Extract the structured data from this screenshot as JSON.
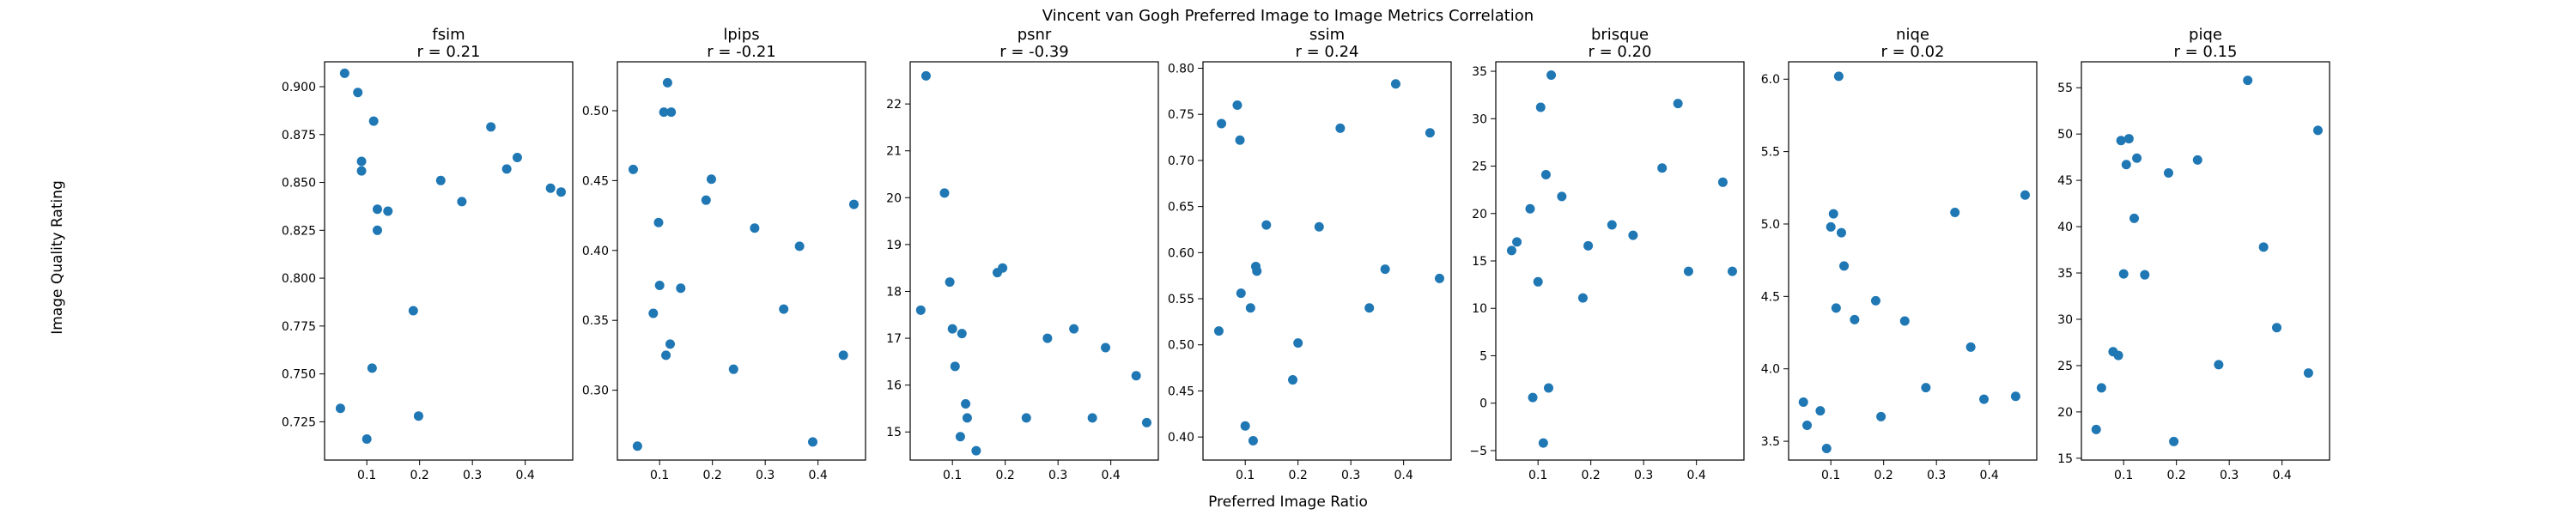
{
  "figure": {
    "suptitle": "Vincent van Gogh Preferred Image to Image Metrics Correlation",
    "xlabel": "Preferred Image Ratio",
    "ylabel": "Image Quality Rating"
  },
  "colors": {
    "point": "#1f77b4",
    "axis": "#000000"
  },
  "chart_data": [
    {
      "type": "scatter",
      "name": "fsim",
      "title": "fsim",
      "subtitle": "r = 0.21",
      "xlim": [
        0.02,
        0.49
      ],
      "ylim": [
        0.705,
        0.913
      ],
      "xticks": [
        0.1,
        0.2,
        0.3,
        0.4
      ],
      "xtick_labels": [
        "0.1",
        "0.2",
        "0.3",
        "0.4"
      ],
      "yticks": [
        0.725,
        0.75,
        0.775,
        0.8,
        0.825,
        0.85,
        0.875,
        0.9
      ],
      "ytick_labels": [
        "0.725",
        "0.750",
        "0.775",
        "0.800",
        "0.825",
        "0.850",
        "0.875",
        "0.900"
      ],
      "x": [
        0.05,
        0.058,
        0.083,
        0.09,
        0.09,
        0.1,
        0.11,
        0.113,
        0.12,
        0.12,
        0.14,
        0.188,
        0.198,
        0.24,
        0.28,
        0.335,
        0.365,
        0.385,
        0.448,
        0.468
      ],
      "y": [
        0.732,
        0.907,
        0.897,
        0.861,
        0.856,
        0.716,
        0.753,
        0.882,
        0.836,
        0.825,
        0.835,
        0.783,
        0.728,
        0.851,
        0.84,
        0.879,
        0.857,
        0.863,
        0.847,
        0.845
      ]
    },
    {
      "type": "scatter",
      "name": "lpips",
      "title": "lpips",
      "subtitle": "r = -0.21",
      "xlim": [
        0.02,
        0.49
      ],
      "ylim": [
        0.25,
        0.535
      ],
      "xticks": [
        0.1,
        0.2,
        0.3,
        0.4
      ],
      "xtick_labels": [
        "0.1",
        "0.2",
        "0.3",
        "0.4"
      ],
      "yticks": [
        0.3,
        0.35,
        0.4,
        0.45,
        0.5
      ],
      "ytick_labels": [
        "0.30",
        "0.35",
        "0.40",
        "0.45",
        "0.50"
      ],
      "x": [
        0.05,
        0.058,
        0.088,
        0.098,
        0.1,
        0.108,
        0.112,
        0.115,
        0.12,
        0.122,
        0.14,
        0.188,
        0.198,
        0.24,
        0.28,
        0.335,
        0.365,
        0.39,
        0.448,
        0.468
      ],
      "y": [
        0.458,
        0.26,
        0.355,
        0.42,
        0.375,
        0.499,
        0.325,
        0.52,
        0.333,
        0.499,
        0.373,
        0.436,
        0.451,
        0.315,
        0.416,
        0.358,
        0.403,
        0.263,
        0.325,
        0.433
      ]
    },
    {
      "type": "scatter",
      "name": "psnr",
      "title": "psnr",
      "subtitle": "r = -0.39",
      "xlim": [
        0.02,
        0.49
      ],
      "ylim": [
        14.4,
        22.9
      ],
      "xticks": [
        0.1,
        0.2,
        0.3,
        0.4
      ],
      "xtick_labels": [
        "0.1",
        "0.2",
        "0.3",
        "0.4"
      ],
      "yticks": [
        15,
        16,
        17,
        18,
        19,
        20,
        21,
        22
      ],
      "ytick_labels": [
        "15",
        "16",
        "17",
        "18",
        "19",
        "20",
        "21",
        "22"
      ],
      "x": [
        0.04,
        0.05,
        0.085,
        0.095,
        0.1,
        0.105,
        0.115,
        0.118,
        0.125,
        0.128,
        0.145,
        0.185,
        0.195,
        0.24,
        0.28,
        0.33,
        0.365,
        0.39,
        0.448,
        0.468
      ],
      "y": [
        17.6,
        22.6,
        20.1,
        18.2,
        17.2,
        16.4,
        14.9,
        17.1,
        15.6,
        15.3,
        14.6,
        18.4,
        18.5,
        15.3,
        17.0,
        17.2,
        15.3,
        16.8,
        16.2,
        15.2
      ]
    },
    {
      "type": "scatter",
      "name": "ssim",
      "title": "ssim",
      "subtitle": "r = 0.24",
      "xlim": [
        0.02,
        0.49
      ],
      "ylim": [
        0.375,
        0.807
      ],
      "xticks": [
        0.1,
        0.2,
        0.3,
        0.4
      ],
      "xtick_labels": [
        "0.1",
        "0.2",
        "0.3",
        "0.4"
      ],
      "yticks": [
        0.4,
        0.45,
        0.5,
        0.55,
        0.6,
        0.65,
        0.7,
        0.75,
        0.8
      ],
      "ytick_labels": [
        "0.40",
        "0.45",
        "0.50",
        "0.55",
        "0.60",
        "0.65",
        "0.70",
        "0.75",
        "0.80"
      ],
      "x": [
        0.05,
        0.055,
        0.085,
        0.09,
        0.092,
        0.1,
        0.11,
        0.115,
        0.12,
        0.122,
        0.14,
        0.19,
        0.2,
        0.24,
        0.28,
        0.335,
        0.365,
        0.385,
        0.45,
        0.468
      ],
      "y": [
        0.515,
        0.74,
        0.76,
        0.722,
        0.556,
        0.412,
        0.54,
        0.396,
        0.585,
        0.58,
        0.63,
        0.462,
        0.502,
        0.628,
        0.735,
        0.54,
        0.582,
        0.783,
        0.73,
        0.572
      ]
    },
    {
      "type": "scatter",
      "name": "brisque",
      "title": "brisque",
      "subtitle": "r = 0.20",
      "xlim": [
        0.02,
        0.49
      ],
      "ylim": [
        -6.0,
        36.0
      ],
      "xticks": [
        0.1,
        0.2,
        0.3,
        0.4
      ],
      "xtick_labels": [
        "0.1",
        "0.2",
        "0.3",
        "0.4"
      ],
      "yticks": [
        -5,
        0,
        5,
        10,
        15,
        20,
        25,
        30,
        35
      ],
      "ytick_labels": [
        "−5",
        "0",
        "5",
        "10",
        "15",
        "20",
        "25",
        "30",
        "35"
      ],
      "x": [
        0.05,
        0.06,
        0.085,
        0.09,
        0.1,
        0.105,
        0.11,
        0.115,
        0.12,
        0.125,
        0.145,
        0.185,
        0.195,
        0.24,
        0.28,
        0.335,
        0.365,
        0.385,
        0.45,
        0.468
      ],
      "y": [
        16.1,
        17.0,
        20.5,
        0.6,
        12.8,
        31.2,
        -4.2,
        24.1,
        1.6,
        34.6,
        21.8,
        11.1,
        16.6,
        18.8,
        17.7,
        24.8,
        31.6,
        13.9,
        23.3,
        13.9
      ]
    },
    {
      "type": "scatter",
      "name": "niqe",
      "title": "niqe",
      "subtitle": "r = 0.02",
      "xlim": [
        0.02,
        0.49
      ],
      "ylim": [
        3.37,
        6.12
      ],
      "xticks": [
        0.1,
        0.2,
        0.3,
        0.4
      ],
      "xtick_labels": [
        "0.1",
        "0.2",
        "0.3",
        "0.4"
      ],
      "yticks": [
        3.5,
        4.0,
        4.5,
        5.0,
        5.5,
        6.0
      ],
      "ytick_labels": [
        "3.5",
        "4.0",
        "4.5",
        "5.0",
        "5.5",
        "6.0"
      ],
      "x": [
        0.048,
        0.055,
        0.08,
        0.092,
        0.1,
        0.105,
        0.11,
        0.115,
        0.12,
        0.125,
        0.145,
        0.185,
        0.195,
        0.24,
        0.28,
        0.335,
        0.365,
        0.39,
        0.45,
        0.468
      ],
      "y": [
        3.77,
        3.61,
        3.71,
        3.45,
        4.98,
        5.07,
        4.42,
        6.02,
        4.94,
        4.71,
        4.34,
        4.47,
        3.67,
        4.33,
        3.87,
        5.08,
        4.15,
        3.79,
        3.81,
        5.2
      ]
    },
    {
      "type": "scatter",
      "name": "piqe",
      "title": "piqe",
      "subtitle": "r = 0.15",
      "xlim": [
        0.02,
        0.49
      ],
      "ylim": [
        14.8,
        57.8
      ],
      "xticks": [
        0.1,
        0.2,
        0.3,
        0.4
      ],
      "xtick_labels": [
        "0.1",
        "0.2",
        "0.3",
        "0.4"
      ],
      "yticks": [
        15,
        20,
        25,
        30,
        35,
        40,
        45,
        50,
        55
      ],
      "ytick_labels": [
        "15",
        "20",
        "25",
        "30",
        "35",
        "40",
        "45",
        "50",
        "55"
      ],
      "x": [
        0.048,
        0.058,
        0.08,
        0.09,
        0.095,
        0.1,
        0.105,
        0.11,
        0.12,
        0.125,
        0.14,
        0.185,
        0.195,
        0.24,
        0.28,
        0.335,
        0.365,
        0.39,
        0.45,
        0.468
      ],
      "y": [
        18.1,
        22.6,
        26.5,
        26.1,
        49.3,
        34.9,
        46.7,
        49.5,
        40.9,
        47.4,
        34.8,
        45.8,
        16.8,
        47.2,
        25.1,
        55.8,
        37.8,
        29.1,
        24.2,
        50.4
      ]
    }
  ]
}
